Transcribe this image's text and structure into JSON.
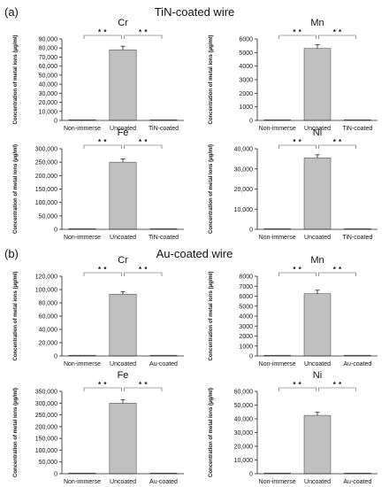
{
  "panels": [
    {
      "label": "(a)",
      "title": "TiN-coated wire"
    },
    {
      "label": "(b)",
      "title": "Au-coated wire"
    }
  ],
  "chart_data": [
    {
      "type": "bar",
      "panel": "(a)",
      "title": "Cr",
      "ylabel": "Concentration of metal ions (μg/ml)",
      "categories": [
        "Non-immerse",
        "Uncoated",
        "TiN-coated"
      ],
      "values": [
        0,
        78000,
        300
      ],
      "errors": [
        0,
        4000,
        0
      ],
      "ylim": [
        0,
        90000
      ],
      "yticks": [
        "0",
        "10,000",
        "20,000",
        "30,000",
        "40,000",
        "50,000",
        "60,000",
        "70,000",
        "80,000",
        "90,000"
      ],
      "significance": [
        "* *",
        "* *"
      ],
      "bar_color": "#c0c0c0"
    },
    {
      "type": "bar",
      "panel": "(a)",
      "title": "Mn",
      "ylabel": "Concentration of metal ions (μg/ml)",
      "categories": [
        "Non-immerse",
        "Uncoated",
        "TiN-coated"
      ],
      "values": [
        0,
        5300,
        30
      ],
      "errors": [
        0,
        280,
        0
      ],
      "ylim": [
        0,
        6000
      ],
      "yticks": [
        "0",
        "1000",
        "2000",
        "3000",
        "4000",
        "5000",
        "6000"
      ],
      "significance": [
        "* *",
        "* *"
      ],
      "bar_color": "#c0c0c0"
    },
    {
      "type": "bar",
      "panel": "(a)",
      "title": "Fe",
      "ylabel": "Concentration of metal ions (μg/ml)",
      "categories": [
        "Non-immerse",
        "Uncoated",
        "TiN-coated"
      ],
      "values": [
        0,
        250000,
        2000
      ],
      "errors": [
        0,
        12000,
        0
      ],
      "ylim": [
        0,
        300000
      ],
      "yticks": [
        "0",
        "50,000",
        "100,000",
        "150,000",
        "200,000",
        "250,000",
        "300,000"
      ],
      "significance": [
        "* *",
        "* *"
      ],
      "bar_color": "#c0c0c0"
    },
    {
      "type": "bar",
      "panel": "(a)",
      "title": "Ni",
      "ylabel": "Concentration of metal ions (μg/ml)",
      "categories": [
        "Non-immerse",
        "Uncoated",
        "TiN-coated"
      ],
      "values": [
        0,
        35500,
        300
      ],
      "errors": [
        0,
        1500,
        0
      ],
      "ylim": [
        0,
        40000
      ],
      "yticks": [
        "0",
        "10,000",
        "20,000",
        "30,000",
        "40,000"
      ],
      "significance": [
        "* *",
        "* *"
      ],
      "bar_color": "#c0c0c0"
    },
    {
      "type": "bar",
      "panel": "(b)",
      "title": "Cr",
      "ylabel": "Concentration of metal ions (μg/ml)",
      "categories": [
        "Non-immerse",
        "Uncoated",
        "Au-coated"
      ],
      "values": [
        0,
        93000,
        300
      ],
      "errors": [
        0,
        4000,
        0
      ],
      "ylim": [
        0,
        120000
      ],
      "yticks": [
        "0",
        "20,000",
        "40,000",
        "60,000",
        "80,000",
        "100,000",
        "120,000"
      ],
      "significance": [
        "* *",
        "* *"
      ],
      "bar_color": "#c0c0c0"
    },
    {
      "type": "bar",
      "panel": "(b)",
      "title": "Mn",
      "ylabel": "Concentration of metal ions (μg/ml)",
      "categories": [
        "Non-immerse",
        "Uncoated",
        "Au-coated"
      ],
      "values": [
        0,
        6250,
        20
      ],
      "errors": [
        0,
        350,
        0
      ],
      "ylim": [
        0,
        8000
      ],
      "yticks": [
        "0",
        "1000",
        "2000",
        "3000",
        "4000",
        "5000",
        "6000",
        "7000",
        "8000"
      ],
      "significance": [
        "* *",
        "* *"
      ],
      "bar_color": "#c0c0c0"
    },
    {
      "type": "bar",
      "panel": "(b)",
      "title": "Fe",
      "ylabel": "Concentration of metal ions (μg/ml)",
      "categories": [
        "Non-immerse",
        "Uncoated",
        "Au-coated"
      ],
      "values": [
        0,
        300000,
        1500
      ],
      "errors": [
        0,
        15000,
        0
      ],
      "ylim": [
        0,
        350000
      ],
      "yticks": [
        "0",
        "50,000",
        "100,000",
        "150,000",
        "200,000",
        "250,000",
        "300,000",
        "350,000"
      ],
      "significance": [
        "* *",
        "* *"
      ],
      "bar_color": "#c0c0c0"
    },
    {
      "type": "bar",
      "panel": "(b)",
      "title": "Ni",
      "ylabel": "Concentration of metal ions (μg/ml)",
      "categories": [
        "Non-immerse",
        "Uncoated",
        "Au-coated"
      ],
      "values": [
        0,
        42500,
        100
      ],
      "errors": [
        0,
        2200,
        0
      ],
      "ylim": [
        0,
        60000
      ],
      "yticks": [
        "0",
        "10,000",
        "20,000",
        "30,000",
        "40,000",
        "50,000",
        "60,000"
      ],
      "significance": [
        "* *",
        "* *"
      ],
      "bar_color": "#c0c0c0"
    }
  ]
}
